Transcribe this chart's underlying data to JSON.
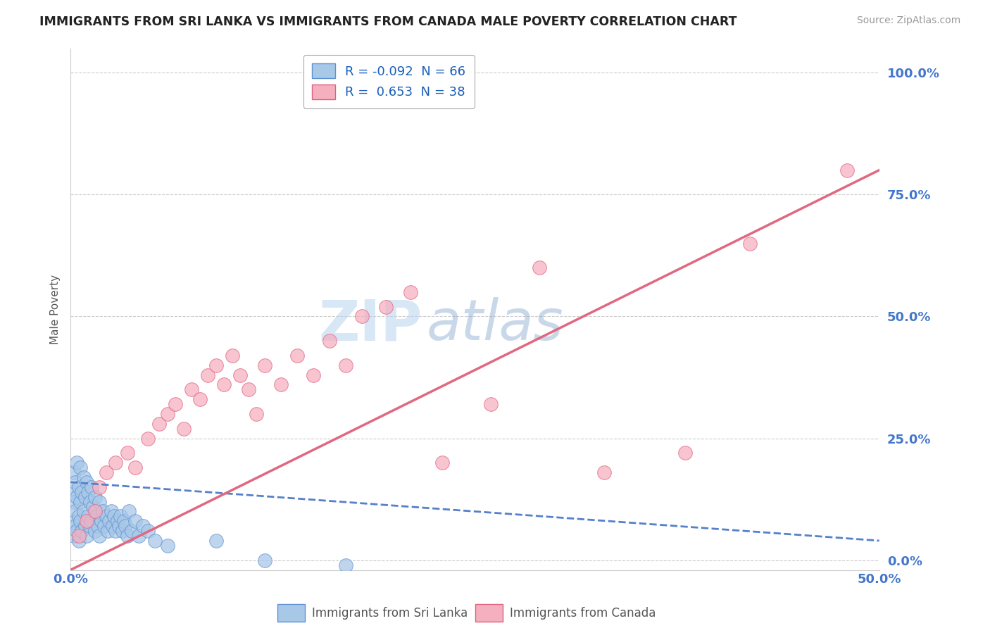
{
  "title": "IMMIGRANTS FROM SRI LANKA VS IMMIGRANTS FROM CANADA MALE POVERTY CORRELATION CHART",
  "source": "Source: ZipAtlas.com",
  "xlim": [
    0.0,
    0.5
  ],
  "ylim": [
    -0.02,
    1.05
  ],
  "watermark_zip": "ZIP",
  "watermark_atlas": "atlas",
  "legend1_label": "R = -0.092  N = 66",
  "legend2_label": "R =  0.653  N = 38",
  "legend_sl": "Immigrants from Sri Lanka",
  "legend_ca": "Immigrants from Canada",
  "sl_color": "#a8c8e8",
  "ca_color": "#f5b0c0",
  "sl_edge_color": "#6090d0",
  "ca_edge_color": "#e06080",
  "sl_line_color": "#5580cc",
  "ca_line_color": "#e06880",
  "sl_scatter_x": [
    0.001,
    0.001,
    0.002,
    0.002,
    0.002,
    0.003,
    0.003,
    0.003,
    0.004,
    0.004,
    0.004,
    0.005,
    0.005,
    0.005,
    0.006,
    0.006,
    0.006,
    0.007,
    0.007,
    0.008,
    0.008,
    0.009,
    0.009,
    0.01,
    0.01,
    0.011,
    0.011,
    0.012,
    0.012,
    0.013,
    0.013,
    0.014,
    0.015,
    0.015,
    0.016,
    0.017,
    0.018,
    0.018,
    0.019,
    0.02,
    0.021,
    0.022,
    0.023,
    0.024,
    0.025,
    0.026,
    0.027,
    0.028,
    0.029,
    0.03,
    0.031,
    0.032,
    0.033,
    0.034,
    0.035,
    0.036,
    0.038,
    0.04,
    0.042,
    0.045,
    0.048,
    0.052,
    0.06,
    0.09,
    0.12,
    0.17
  ],
  "sl_scatter_y": [
    0.08,
    0.14,
    0.05,
    0.12,
    0.18,
    0.07,
    0.1,
    0.16,
    0.06,
    0.13,
    0.2,
    0.04,
    0.09,
    0.15,
    0.08,
    0.12,
    0.19,
    0.06,
    0.14,
    0.1,
    0.17,
    0.07,
    0.13,
    0.05,
    0.16,
    0.09,
    0.14,
    0.07,
    0.12,
    0.08,
    0.15,
    0.11,
    0.06,
    0.13,
    0.09,
    0.07,
    0.05,
    0.12,
    0.08,
    0.1,
    0.07,
    0.09,
    0.06,
    0.08,
    0.1,
    0.07,
    0.09,
    0.06,
    0.08,
    0.07,
    0.09,
    0.06,
    0.08,
    0.07,
    0.05,
    0.1,
    0.06,
    0.08,
    0.05,
    0.07,
    0.06,
    0.04,
    0.03,
    0.04,
    0.0,
    -0.01
  ],
  "ca_scatter_x": [
    0.005,
    0.01,
    0.015,
    0.018,
    0.022,
    0.028,
    0.035,
    0.04,
    0.048,
    0.055,
    0.06,
    0.065,
    0.07,
    0.075,
    0.08,
    0.085,
    0.09,
    0.095,
    0.1,
    0.105,
    0.11,
    0.115,
    0.12,
    0.13,
    0.14,
    0.15,
    0.16,
    0.17,
    0.18,
    0.195,
    0.21,
    0.23,
    0.26,
    0.29,
    0.33,
    0.38,
    0.42,
    0.48
  ],
  "ca_scatter_y": [
    0.05,
    0.08,
    0.1,
    0.15,
    0.18,
    0.2,
    0.22,
    0.19,
    0.25,
    0.28,
    0.3,
    0.32,
    0.27,
    0.35,
    0.33,
    0.38,
    0.4,
    0.36,
    0.42,
    0.38,
    0.35,
    0.3,
    0.4,
    0.36,
    0.42,
    0.38,
    0.45,
    0.4,
    0.5,
    0.52,
    0.55,
    0.2,
    0.32,
    0.6,
    0.18,
    0.22,
    0.65,
    0.8
  ],
  "sl_line_x": [
    0.0,
    0.5
  ],
  "sl_line_y": [
    0.16,
    0.04
  ],
  "ca_line_x": [
    0.0,
    0.5
  ],
  "ca_line_y": [
    -0.02,
    0.8
  ],
  "ytick_positions": [
    0.0,
    0.25,
    0.5,
    0.75,
    1.0
  ],
  "ytick_labels": [
    "0.0%",
    "25.0%",
    "50.0%",
    "75.0%",
    "100.0%"
  ],
  "xtick_positions": [
    0.0,
    0.5
  ],
  "xtick_labels": [
    "0.0%",
    "50.0%"
  ]
}
